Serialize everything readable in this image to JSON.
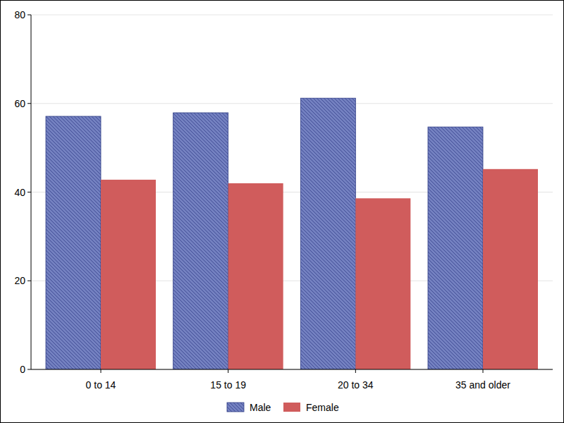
{
  "chart_data": {
    "type": "bar",
    "categories": [
      "0 to 14",
      "15 to 19",
      "20 to 34",
      "35 and older"
    ],
    "series": [
      {
        "name": "Male",
        "color": "#7380c0",
        "values": [
          57.1,
          57.9,
          61.2,
          54.7
        ]
      },
      {
        "name": "Female",
        "color": "#d05c5c",
        "values": [
          42.8,
          42.0,
          38.6,
          45.2
        ]
      }
    ],
    "ylim": [
      0,
      80
    ],
    "yticks": [
      0,
      20,
      40,
      60,
      80
    ],
    "grid": true,
    "legend": "bottom"
  }
}
